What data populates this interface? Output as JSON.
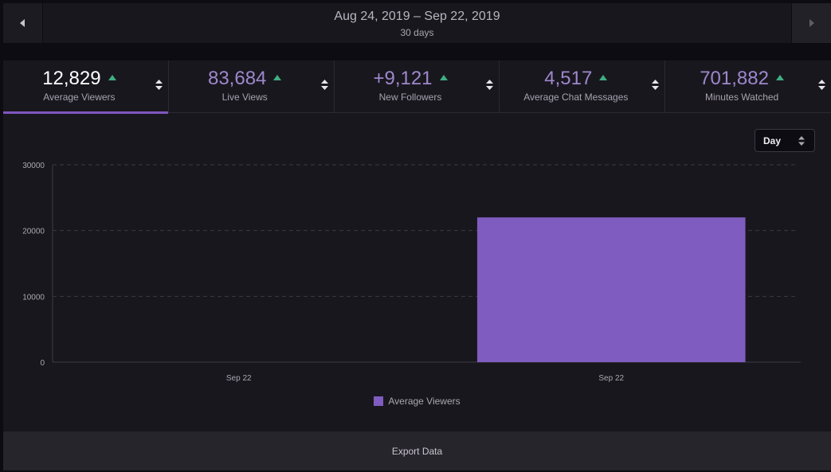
{
  "date_bar": {
    "range": "Aug 24, 2019 – Sep 22, 2019",
    "duration": "30 days",
    "prev_icon": "caret-left-icon",
    "next_icon": "caret-right-icon"
  },
  "stats": [
    {
      "value": "12,829",
      "label": "Average Viewers",
      "active": true
    },
    {
      "value": "83,684",
      "label": "Live Views",
      "active": false
    },
    {
      "value": "+9,121",
      "label": "New Followers",
      "active": false
    },
    {
      "value": "4,517",
      "label": "Average Chat Messages",
      "active": false
    },
    {
      "value": "701,882",
      "label": "Minutes Watched",
      "active": false
    }
  ],
  "interval_select": {
    "label": "Day"
  },
  "chart_data": {
    "type": "bar",
    "categories": [
      "Sep 22",
      "Sep 22"
    ],
    "series": [
      {
        "name": "Average Viewers",
        "values": [
          0,
          22000
        ],
        "color": "#7f5cbf"
      }
    ],
    "yticks": [
      "0",
      "10000",
      "20000",
      "30000"
    ],
    "ylim": [
      0,
      30000
    ],
    "grid": true,
    "legend": "bottom-center"
  },
  "export": {
    "label": "Export Data"
  },
  "colors": {
    "accent": "#7f55bf",
    "positive": "#3fae82",
    "panel": "#19171e",
    "background": "#0e0c13"
  }
}
